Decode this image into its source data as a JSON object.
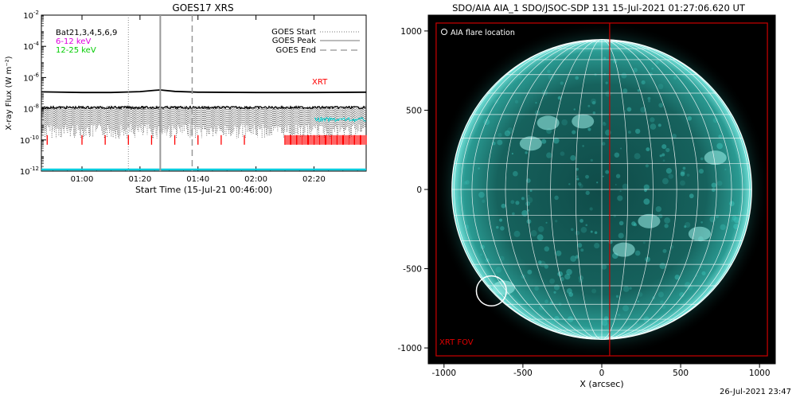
{
  "goes": {
    "title": "GOES17 XRS",
    "ylabel": "X-ray Flux (W m⁻²)",
    "xlabel": "Start Time (15-Jul-21 00:46:00)",
    "legend_channels": [
      {
        "label": "Bat21,3,4,5,6,9",
        "color": "#000000"
      },
      {
        "label": "6-12 keV",
        "color": "#e000e0"
      },
      {
        "label": "12-25 keV",
        "color": "#00cc00"
      }
    ],
    "legend_markers": [
      {
        "label": "GOES Start",
        "style": "dotted"
      },
      {
        "label": "GOES Peak",
        "style": "solid"
      },
      {
        "label": "GOES End",
        "style": "dashed"
      }
    ],
    "xrt_label": "XRT"
  },
  "aia": {
    "title": "SDO/AIA AIA_1 SDO/JSOC-SDP 131 15-Jul-2021 01:27:06.620 UT",
    "xlabel": "X (arcsec)",
    "flare_legend": "AIA flare location",
    "fov_label": "XRT FOV"
  },
  "footer": "26-Jul-2021 23:47",
  "colors": {
    "xrt_marks": "#ff0000",
    "sun": "#2fb8b0",
    "fov": "#cc0000",
    "grid": "#ffffff",
    "axis_band": "#00ccdd"
  },
  "chart_data": [
    {
      "type": "line",
      "id": "goes_xrs",
      "x_time_range": [
        "00:46",
        "02:38"
      ],
      "x_tick_labels": [
        "01:00",
        "01:20",
        "01:40",
        "02:00",
        "02:20"
      ],
      "x_ticks": [
        "01:00",
        "01:20",
        "01:40",
        "02:00",
        "02:20"
      ],
      "y_scale": "log",
      "ylim": [
        1e-12,
        0.01
      ],
      "y_tick_exponents": [
        -12,
        -10,
        -8,
        -6,
        -4,
        -2
      ],
      "series": [
        {
          "name": "Bat21,3,4,5,6,9",
          "note_values": "long channel ~1.2e-7 W m^-2, bump near 01:27",
          "times": [
            "00:46",
            "01:00",
            "01:10",
            "01:20",
            "01:25",
            "01:27",
            "01:32",
            "01:40",
            "02:00",
            "02:20",
            "02:38"
          ],
          "values": [
            1.2e-07,
            1.1e-07,
            1.1e-07,
            1.25e-07,
            1.5e-07,
            1.6e-07,
            1.3e-07,
            1.15e-07,
            1.1e-07,
            1.1e-07,
            1.15e-07
          ]
        },
        {
          "name": "6-12 keV",
          "times": [
            "00:46",
            "02:38"
          ],
          "values": [
            1e-08,
            1e-08
          ]
        },
        {
          "name": "12-25 keV",
          "times": [
            "00:46",
            "02:38"
          ],
          "values": [
            1e-08,
            1e-08
          ]
        }
      ],
      "markers": {
        "GOES Start": "01:16",
        "GOES Peak": "01:27",
        "GOES End": "01:38"
      },
      "xrt_obs_times": [
        "00:48",
        "01:00",
        "01:08",
        "01:16",
        "01:24",
        "01:32",
        "01:40",
        "01:48",
        "01:56",
        "02:10",
        "02:12",
        "02:14",
        "02:16",
        "02:18",
        "02:20",
        "02:22",
        "02:24",
        "02:26",
        "02:28",
        "02:30",
        "02:32",
        "02:34",
        "02:36",
        "02:38"
      ]
    },
    {
      "type": "scatter",
      "id": "aia_image",
      "xlim": [
        -1100,
        1100
      ],
      "ylim": [
        -1100,
        1100
      ],
      "x_ticks": [
        -1000,
        -500,
        0,
        500,
        1000
      ],
      "y_ticks": [
        -1000,
        -500,
        0,
        500,
        1000
      ],
      "xlabel": "X (arcsec)",
      "solar_radius_arcsec": 950,
      "flare_location": {
        "x": -700,
        "y": -640,
        "radius": 95
      },
      "xrt_fov": {
        "x0": -1050,
        "x1": 1050,
        "y0": -1050,
        "y1": 1050
      },
      "center_line_x": 50
    }
  ]
}
